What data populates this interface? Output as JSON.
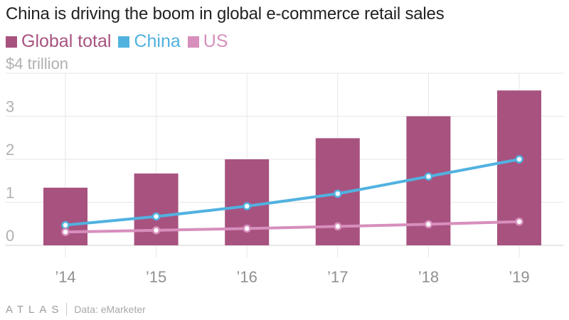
{
  "title": "China is driving the boom in global e-commerce retail sales",
  "footer": {
    "logo": "ATLAS",
    "source": "Data: eMarketer"
  },
  "colors": {
    "global": "#a8527f",
    "china": "#51b2e0",
    "us": "#d78fbd",
    "grid": "#e6e6e6",
    "tick_text": "#b0b0b0"
  },
  "chart_data": {
    "type": "bar",
    "title": "China is driving the boom in global e-commerce retail sales",
    "categories": [
      "’14",
      "’15",
      "’16",
      "’17",
      "’18",
      "’19"
    ],
    "ylim": [
      0,
      4
    ],
    "yticks": [
      {
        "value": 0,
        "label": "0"
      },
      {
        "value": 1,
        "label": "1"
      },
      {
        "value": 2,
        "label": "2"
      },
      {
        "value": 3,
        "label": "3"
      },
      {
        "value": 4,
        "label": "$4 trillion"
      }
    ],
    "grid": true,
    "legend": "top-left",
    "series": [
      {
        "name": "Global total",
        "kind": "bar",
        "color": "#a8527f",
        "values": [
          1.34,
          1.67,
          2.0,
          2.49,
          3.0,
          3.6
        ]
      },
      {
        "name": "China",
        "kind": "line",
        "color": "#51b2e0",
        "values": [
          0.47,
          0.67,
          0.91,
          1.2,
          1.6,
          2.0
        ]
      },
      {
        "name": "US",
        "kind": "line",
        "color": "#d78fbd",
        "values": [
          0.31,
          0.35,
          0.39,
          0.44,
          0.49,
          0.55
        ]
      }
    ]
  }
}
